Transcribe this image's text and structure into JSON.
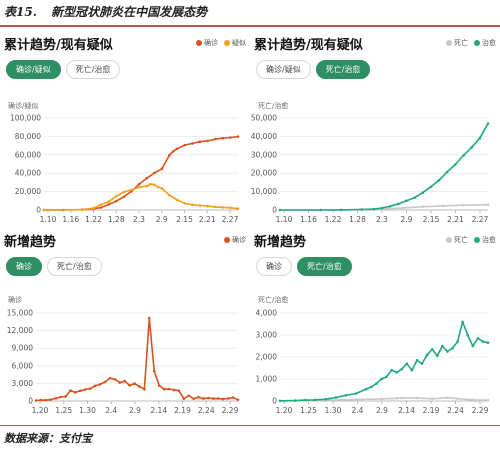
{
  "caption": {
    "number": "表15.",
    "title": "新型冠状肺炎在中国发展态势"
  },
  "source": "数据来源：支付宝",
  "colors": {
    "confirmed": "#d9531e",
    "suspected": "#f0a020",
    "death": "#c8c8c8",
    "cured": "#1fa884",
    "tab_active": "#2d8f63"
  },
  "panels": [
    {
      "title": "累计趋势/现有疑似",
      "legend": [
        "确诊",
        "疑似"
      ],
      "tabs": [
        "确诊/疑似",
        "死亡/治愈"
      ],
      "active_tab": 0,
      "unit": "确诊/疑似"
    },
    {
      "title": "累计趋势/现有疑似",
      "legend": [
        "死亡",
        "治愈"
      ],
      "tabs": [
        "确诊/疑似",
        "死亡/治愈"
      ],
      "active_tab": 1,
      "unit": "死亡/治愈"
    },
    {
      "title": "新增趋势",
      "legend": [
        "确诊"
      ],
      "tabs": [
        "确诊",
        "死亡/治愈"
      ],
      "active_tab": 0,
      "unit": "确诊"
    },
    {
      "title": "新增趋势",
      "legend": [
        "死亡",
        "治愈"
      ],
      "tabs": [
        "确诊",
        "死亡/治愈"
      ],
      "active_tab": 1,
      "unit": "死亡/治愈"
    }
  ],
  "chart_data": [
    {
      "type": "line",
      "x_ticks": [
        "1.10",
        "1.16",
        "1.22",
        "1.28",
        "2.3",
        "2.9",
        "2.15",
        "2.21",
        "2.27"
      ],
      "ylim": [
        0,
        100000
      ],
      "y_ticks": [
        "0",
        "20,000",
        "40,000",
        "60,000",
        "80,000",
        "100,000"
      ],
      "n_days": 52,
      "series": [
        {
          "name": "确诊",
          "color": "#d9531e",
          "points": [
            [
              0,
              41
            ],
            [
              5,
              45
            ],
            [
              10,
              440
            ],
            [
              13,
              1287
            ],
            [
              15,
              2744
            ],
            [
              17,
              5974
            ],
            [
              19,
              9692
            ],
            [
              21,
              14380
            ],
            [
              23,
              20438
            ],
            [
              25,
              28018
            ],
            [
              27,
              34546
            ],
            [
              29,
              40171
            ],
            [
              31,
              44653
            ],
            [
              33,
              59804
            ],
            [
              34,
              63851
            ],
            [
              35,
              66492
            ],
            [
              37,
              70548
            ],
            [
              39,
              72436
            ],
            [
              41,
              74185
            ],
            [
              43,
              75077
            ],
            [
              45,
              77042
            ],
            [
              47,
              78064
            ],
            [
              49,
              78824
            ],
            [
              51,
              79824
            ]
          ]
        },
        {
          "name": "疑似",
          "color": "#f0a020",
          "points": [
            [
              0,
              0
            ],
            [
              10,
              300
            ],
            [
              13,
              2000
            ],
            [
              15,
              6000
            ],
            [
              17,
              9000
            ],
            [
              19,
              15000
            ],
            [
              21,
              19500
            ],
            [
              23,
              22000
            ],
            [
              25,
              24700
            ],
            [
              27,
              26000
            ],
            [
              28,
              28000
            ],
            [
              29,
              27500
            ],
            [
              30,
              25000
            ],
            [
              31,
              23500
            ],
            [
              33,
              16000
            ],
            [
              35,
              11000
            ],
            [
              37,
              7300
            ],
            [
              39,
              5600
            ],
            [
              41,
              4900
            ],
            [
              43,
              4100
            ],
            [
              45,
              3400
            ],
            [
              47,
              2800
            ],
            [
              49,
              2350
            ],
            [
              51,
              1500
            ]
          ]
        }
      ]
    },
    {
      "type": "line",
      "x_ticks": [
        "1.10",
        "1.16",
        "1.22",
        "1.28",
        "2.3",
        "2.9",
        "2.15",
        "2.21",
        "2.27"
      ],
      "ylim": [
        0,
        50000
      ],
      "y_ticks": [
        "0",
        "10,000",
        "20,000",
        "30,000",
        "40,000",
        "50,000"
      ],
      "n_days": 52,
      "series": [
        {
          "name": "死亡",
          "color": "#c8c8c8",
          "points": [
            [
              0,
              1
            ],
            [
              10,
              9
            ],
            [
              15,
              80
            ],
            [
              20,
              250
            ],
            [
              25,
              560
            ],
            [
              30,
              1016
            ],
            [
              35,
              1770
            ],
            [
              40,
              2250
            ],
            [
              45,
              2600
            ],
            [
              51,
              2870
            ]
          ]
        },
        {
          "name": "治愈",
          "color": "#1fa884",
          "points": [
            [
              0,
              0
            ],
            [
              10,
              20
            ],
            [
              15,
              60
            ],
            [
              20,
              250
            ],
            [
              23,
              500
            ],
            [
              25,
              1100
            ],
            [
              27,
              2000
            ],
            [
              29,
              3300
            ],
            [
              31,
              5000
            ],
            [
              33,
              6700
            ],
            [
              35,
              9400
            ],
            [
              37,
              12600
            ],
            [
              39,
              16200
            ],
            [
              41,
              20700
            ],
            [
              43,
              24800
            ],
            [
              45,
              29700
            ],
            [
              47,
              34000
            ],
            [
              49,
              39000
            ],
            [
              51,
              47000
            ]
          ]
        }
      ]
    },
    {
      "type": "line",
      "x_ticks": [
        "1.20",
        "1.25",
        "1.30",
        "2.4",
        "2.9",
        "2.14",
        "2.19",
        "2.24",
        "2.29"
      ],
      "ylim": [
        0,
        15000
      ],
      "y_ticks": [
        "0",
        "3,000",
        "6,000",
        "9,000",
        "12,000",
        "15,000"
      ],
      "n_days": 42,
      "series": [
        {
          "name": "确诊",
          "color": "#d9531e",
          "points": [
            [
              0,
              77
            ],
            [
              1,
              149
            ],
            [
              2,
              131
            ],
            [
              3,
              259
            ],
            [
              4,
              444
            ],
            [
              5,
              688
            ],
            [
              6,
              769
            ],
            [
              7,
              1771
            ],
            [
              8,
              1459
            ],
            [
              9,
              1737
            ],
            [
              10,
              1982
            ],
            [
              11,
              2102
            ],
            [
              12,
              2590
            ],
            [
              13,
              2829
            ],
            [
              14,
              3235
            ],
            [
              15,
              3887
            ],
            [
              16,
              3694
            ],
            [
              17,
              3143
            ],
            [
              18,
              3385
            ],
            [
              19,
              2652
            ],
            [
              20,
              2973
            ],
            [
              21,
              2467
            ],
            [
              22,
              2015
            ],
            [
              23,
              14108
            ],
            [
              24,
              5090
            ],
            [
              25,
              2641
            ],
            [
              26,
              2009
            ],
            [
              27,
              2048
            ],
            [
              28,
              1886
            ],
            [
              29,
              1749
            ],
            [
              30,
              394
            ],
            [
              31,
              889
            ],
            [
              32,
              397
            ],
            [
              33,
              648
            ],
            [
              34,
              409
            ],
            [
              35,
              508
            ],
            [
              36,
              406
            ],
            [
              37,
              433
            ],
            [
              38,
              327
            ],
            [
              39,
              427
            ],
            [
              40,
              573
            ],
            [
              41,
              202
            ]
          ]
        }
      ]
    },
    {
      "type": "line",
      "x_ticks": [
        "1.20",
        "1.25",
        "1.30",
        "2.4",
        "2.9",
        "2.14",
        "2.19",
        "2.24",
        "2.29"
      ],
      "ylim": [
        0,
        4000
      ],
      "y_ticks": [
        "0",
        "1,000",
        "2,000",
        "3,000",
        "4,000"
      ],
      "n_days": 42,
      "series": [
        {
          "name": "死亡",
          "color": "#c8c8c8",
          "points": [
            [
              0,
              3
            ],
            [
              5,
              26
            ],
            [
              10,
              45
            ],
            [
              15,
              65
            ],
            [
              20,
              97
            ],
            [
              23,
              121
            ],
            [
              24,
              143
            ],
            [
              27,
              139
            ],
            [
              30,
              98
            ],
            [
              33,
              150
            ],
            [
              35,
              105
            ],
            [
              38,
              52
            ],
            [
              41,
              35
            ]
          ]
        },
        {
          "name": "治愈",
          "color": "#1fa884",
          "points": [
            [
              0,
              10
            ],
            [
              3,
              20
            ],
            [
              5,
              40
            ],
            [
              7,
              50
            ],
            [
              9,
              80
            ],
            [
              11,
              160
            ],
            [
              13,
              260
            ],
            [
              15,
              340
            ],
            [
              17,
              540
            ],
            [
              18,
              640
            ],
            [
              19,
              790
            ],
            [
              20,
              1000
            ],
            [
              21,
              1100
            ],
            [
              22,
              1400
            ],
            [
              23,
              1300
            ],
            [
              24,
              1450
            ],
            [
              25,
              1700
            ],
            [
              26,
              1400
            ],
            [
              27,
              1850
            ],
            [
              28,
              1700
            ],
            [
              29,
              2100
            ],
            [
              30,
              2350
            ],
            [
              31,
              2050
            ],
            [
              32,
              2500
            ],
            [
              33,
              2250
            ],
            [
              34,
              2400
            ],
            [
              35,
              2700
            ],
            [
              36,
              3600
            ],
            [
              37,
              3000
            ],
            [
              38,
              2500
            ],
            [
              39,
              2850
            ],
            [
              40,
              2700
            ],
            [
              41,
              2650
            ]
          ]
        }
      ]
    }
  ]
}
